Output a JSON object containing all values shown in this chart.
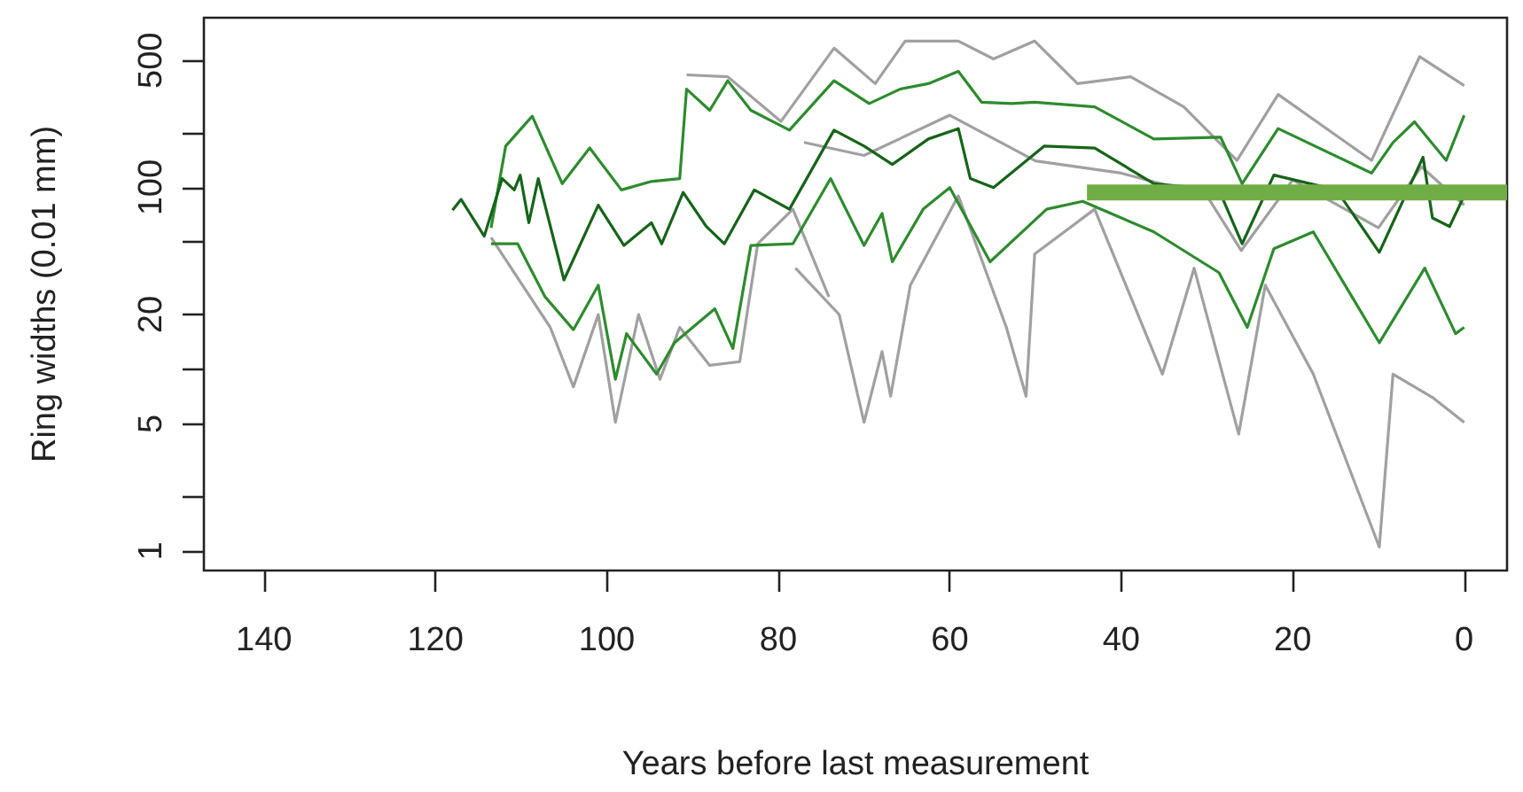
{
  "chart_data": {
    "type": "line",
    "xlabel": "Years before last measurement",
    "ylabel": "Ring widths (0.01 mm)",
    "xlim": [
      147,
      -5
    ],
    "xticks": [
      140,
      120,
      100,
      80,
      60,
      40,
      20,
      0
    ],
    "ylim": [
      0.78,
      860
    ],
    "yticks": [
      1,
      {
        "value": 2,
        "label": null
      },
      5,
      {
        "value": 10,
        "label": null
      },
      20,
      {
        "value": 50,
        "label": null
      },
      100,
      {
        "value": 200,
        "label": null
      },
      500
    ],
    "log": "y",
    "grid": false,
    "marker": "none",
    "line_style": "solid",
    "series": [
      {
        "color": "#a0a0a0",
        "x": [
          78,
          72.9,
          70,
          67.9,
          66.9,
          64.6,
          59,
          53.4,
          51.1,
          50.1,
          43.1,
          35.2,
          31.5,
          26.3,
          23.2,
          17.6,
          9.9,
          8.3,
          3.7,
          0
        ],
        "values": [
          36,
          20,
          5.1,
          12.5,
          7.1,
          29,
          90,
          17,
          7.1,
          43,
          76,
          9.4,
          36,
          4.4,
          29,
          9.4,
          1.05,
          9.4,
          7,
          5.1
        ]
      },
      {
        "color": "#a0a0a0",
        "x": [
          113.5,
          106.6,
          103.9,
          101,
          99,
          96.3,
          93.8,
          91.5,
          88,
          84.5,
          82.4,
          78.3,
          74.1
        ],
        "values": [
          53,
          17,
          8,
          20,
          5.1,
          20,
          8.8,
          17,
          10.5,
          11,
          49,
          76,
          25
        ]
      },
      {
        "color": "#a0a0a0",
        "x": [
          90.7,
          85.9,
          79.7,
          73.5,
          68.7,
          65.2,
          61.7,
          59,
          54.9,
          50.1,
          45.1,
          38.9,
          32.7,
          26.5,
          21.7,
          10.8,
          5.2,
          0
        ],
        "values": [
          417,
          407,
          231,
          585,
          373,
          640,
          640,
          640,
          510,
          640,
          373,
          407,
          278,
          141,
          325,
          141,
          525,
          364
        ]
      },
      {
        "color": "#a0a0a0",
        "x": [
          77,
          70,
          60,
          50,
          40,
          30,
          26,
          20,
          10,
          5,
          0
        ],
        "values": [
          177,
          150,
          250,
          140,
          120,
          90,
          45,
          110,
          60,
          130,
          80
        ]
      },
      {
        "color": "#2e8b2e",
        "x": [
          113.5,
          111.8,
          108.7,
          105.2,
          102,
          98.3,
          94.8,
          91.5,
          90.7,
          88,
          85.9,
          83.2,
          78.7,
          73.5,
          69.4,
          65.8,
          62.5,
          59,
          56.3,
          52.8,
          50.1,
          43.1,
          36.2,
          28.4,
          25.9,
          21.7,
          10.8,
          8.3,
          5.8,
          2.1,
          0
        ],
        "values": [
          60,
          169,
          247,
          105,
          165,
          97,
          108,
          112,
          348,
          266,
          387,
          266,
          207,
          387,
          290,
          348,
          373,
          436,
          295,
          290,
          295,
          278,
          185,
          189,
          105,
          211,
          120,
          177,
          230,
          141,
          250
        ]
      },
      {
        "color": "#2e8b2e",
        "x": [
          113.5,
          110.4,
          107.2,
          103.9,
          101,
          99,
          97.7,
          94.2,
          92.1,
          87.4,
          85.3,
          83.2,
          78.3,
          73.9,
          70,
          67.9,
          66.7,
          63.1,
          60,
          55.3,
          48.7,
          44.5,
          36.2,
          28.6,
          25.3,
          22.2,
          17.6,
          9.9,
          4.6,
          1,
          0
        ],
        "values": [
          49,
          49,
          25,
          16.5,
          29,
          8.8,
          15.7,
          9.4,
          14,
          21.5,
          13,
          48,
          49,
          112,
          48,
          72,
          39,
          76,
          100,
          39,
          76,
          84,
          57,
          34,
          17,
          46,
          57,
          14,
          36,
          15.7,
          17
        ]
      },
      {
        "color": "#16641a",
        "x": [
          118,
          117,
          114.3,
          112.2,
          110.8,
          110.1,
          109.1,
          108,
          105,
          101,
          98,
          94.8,
          93.6,
          91.1,
          88.4,
          86.3,
          82.8,
          78.7,
          73.5,
          70,
          66.7,
          62.5,
          59,
          57.6,
          54.9,
          49,
          43.1,
          36.2,
          28.6,
          25.9,
          22.2,
          14.9,
          9.9,
          4.8,
          3.7,
          1.7,
          0
        ],
        "values": [
          75,
          86,
          54,
          112,
          97,
          117,
          64,
          112,
          31,
          80,
          48,
          64,
          49,
          94,
          61,
          49,
          97,
          76,
          207,
          169,
          134,
          185,
          211,
          112,
          100,
          169,
          165,
          105,
          97,
          49,
          117,
          97,
          44,
          147,
          68,
          61,
          90
        ]
      },
      {
        "color": "#70ad47",
        "x": [
          44,
          -5
        ],
        "values": [
          94,
          94
        ]
      }
    ]
  }
}
